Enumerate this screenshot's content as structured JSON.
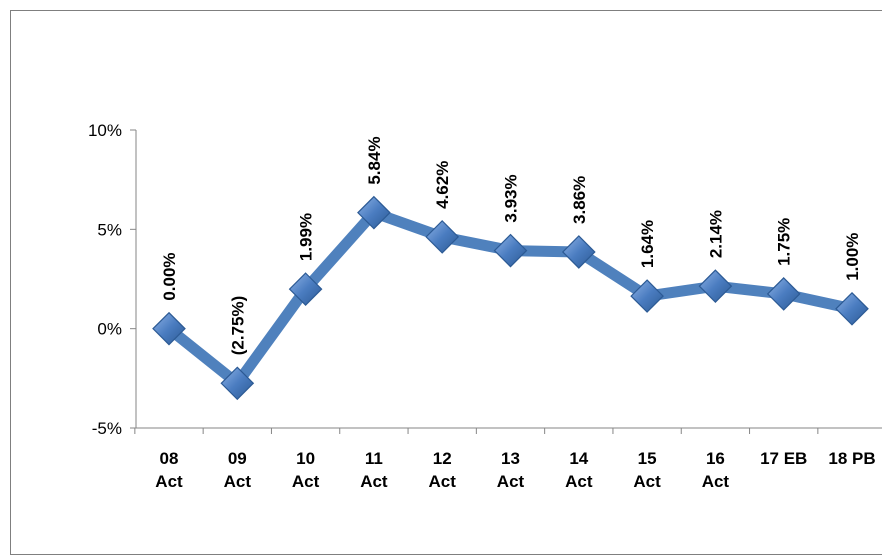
{
  "chart_data": {
    "type": "line",
    "categories": [
      [
        "08",
        "Act"
      ],
      [
        "09",
        "Act"
      ],
      [
        "10",
        "Act"
      ],
      [
        "11",
        "Act"
      ],
      [
        "12",
        "Act"
      ],
      [
        "13",
        "Act"
      ],
      [
        "14",
        "Act"
      ],
      [
        "15",
        "Act"
      ],
      [
        "16",
        "Act"
      ],
      [
        "17 EB"
      ],
      [
        "18 PB"
      ]
    ],
    "series": [
      {
        "values": [
          0.0,
          -2.75,
          1.99,
          5.84,
          4.62,
          3.93,
          3.86,
          1.64,
          2.14,
          1.75,
          1.0
        ],
        "labels": [
          "0.00%",
          "(2.75%)",
          "1.99%",
          "5.84%",
          "4.62%",
          "3.93%",
          "3.86%",
          "1.64%",
          "2.14%",
          "1.75%",
          "1.00%"
        ]
      }
    ],
    "ylim": [
      -5,
      10
    ],
    "yticks": [
      {
        "value": 10,
        "label": "10%"
      },
      {
        "value": 5,
        "label": "5%"
      },
      {
        "value": 0,
        "label": "0%"
      },
      {
        "value": -5,
        "label": "-5%"
      }
    ],
    "grid": false,
    "legend": "none",
    "colors": {
      "line": "#4f81bd",
      "marker_fill": "#4a7cc0",
      "marker_edge": "#2c5a94",
      "axis": "#868686"
    }
  }
}
